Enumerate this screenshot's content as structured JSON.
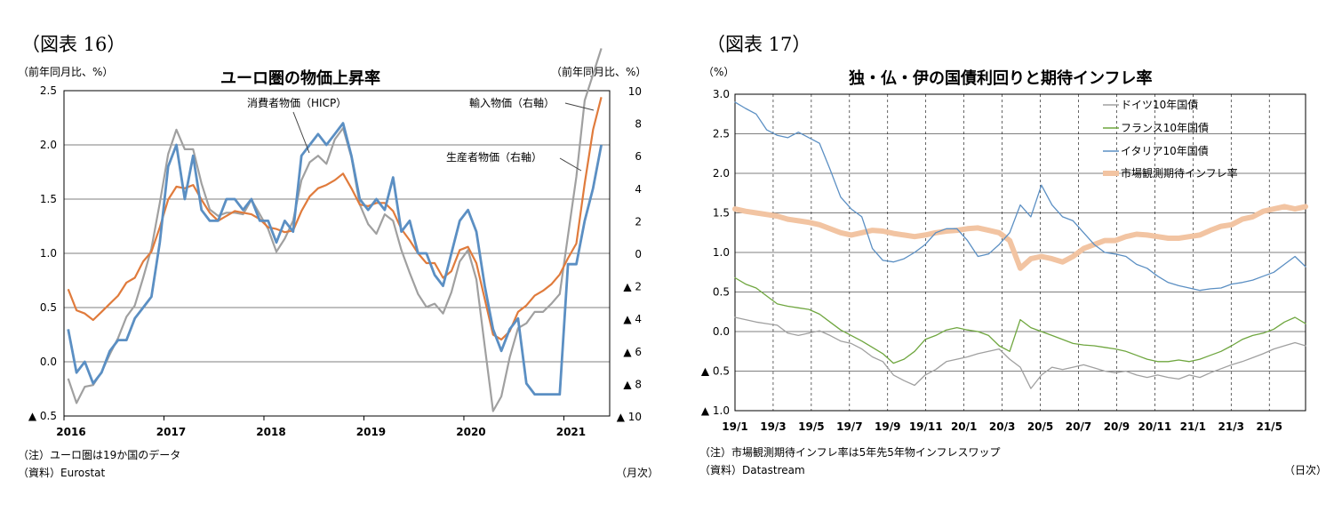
{
  "left": {
    "figure_label": "（図表 16）",
    "unit_left": "（前年同月比、%）",
    "unit_right": "（前年同月比、%）",
    "note": "（注）ユーロ圏は19か国のデータ",
    "source": "（資料）Eurostat",
    "period": "（月次）"
  },
  "right": {
    "figure_label": "（図表 17）",
    "unit_left": "（%）",
    "note": "（注）市場観測期待インフレ率は5年先5年物インフレスワップ",
    "source": "（資料）Datastream",
    "period": "（日次）"
  },
  "chart_data": [
    {
      "type": "line",
      "title": "ユーロ圏の物価上昇率",
      "x_tick_labels": [
        "2016",
        "2017",
        "2018",
        "2019",
        "2020",
        "2021"
      ],
      "y_left": {
        "min": -0.5,
        "max": 2.5,
        "ticks": [
          2.5,
          2.0,
          1.5,
          1.0,
          0.5,
          0.0,
          -0.5
        ],
        "tick_labels": [
          "2.5",
          "2.0",
          "1.5",
          "1.0",
          "0.5",
          "0.0",
          "▲ 0.5"
        ]
      },
      "y_right": {
        "min": -10,
        "max": 10,
        "ticks": [
          10,
          8,
          6,
          4,
          2,
          0,
          -2,
          -4,
          -6,
          -8,
          -10
        ],
        "tick_labels": [
          "10",
          "8",
          "6",
          "4",
          "2",
          "0",
          "▲ 2",
          "▲ 4",
          "▲ 6",
          "▲ 8",
          "▲ 10"
        ]
      },
      "grid": true,
      "x_start": "2016-01",
      "series": [
        {
          "name": "消費者物価（HICP）",
          "axis": "left",
          "color": "#5b8fc3",
          "values": [
            0.3,
            -0.1,
            0.0,
            -0.2,
            -0.1,
            0.1,
            0.2,
            0.2,
            0.4,
            0.5,
            0.6,
            1.1,
            1.8,
            2.0,
            1.5,
            1.9,
            1.4,
            1.3,
            1.3,
            1.5,
            1.5,
            1.4,
            1.5,
            1.3,
            1.3,
            1.1,
            1.3,
            1.2,
            1.9,
            2.0,
            2.1,
            2.0,
            2.1,
            2.2,
            1.9,
            1.5,
            1.4,
            1.5,
            1.4,
            1.7,
            1.2,
            1.3,
            1.0,
            1.0,
            0.8,
            0.7,
            1.0,
            1.3,
            1.4,
            1.2,
            0.7,
            0.3,
            0.1,
            0.3,
            0.4,
            -0.2,
            -0.3,
            -0.3,
            -0.3,
            -0.3,
            0.9,
            0.9,
            1.3,
            1.6,
            2.0
          ]
        },
        {
          "name": "生産者物価（右軸）",
          "axis": "right",
          "color": "#e07b3c",
          "values": [
            -2.2,
            -3.5,
            -3.7,
            -4.1,
            -3.6,
            -3.1,
            -2.6,
            -1.8,
            -1.5,
            -0.5,
            0.1,
            1.6,
            3.3,
            4.1,
            4.0,
            4.2,
            3.3,
            2.5,
            2.0,
            2.3,
            2.6,
            2.5,
            2.4,
            2.1,
            1.6,
            1.5,
            1.3,
            1.4,
            2.6,
            3.5,
            4.0,
            4.2,
            4.5,
            4.9,
            4.0,
            3.0,
            2.9,
            3.1,
            3.1,
            2.6,
            1.5,
            0.8,
            0.0,
            -0.6,
            -0.6,
            -1.5,
            -1.1,
            0.2,
            0.4,
            -0.6,
            -2.8,
            -5.0,
            -5.3,
            -4.8,
            -3.6,
            -3.2,
            -2.6,
            -2.3,
            -1.9,
            -1.3,
            -0.3,
            0.6,
            4.3,
            7.6,
            9.6
          ]
        },
        {
          "name": "輸入物価（右軸）",
          "axis": "right",
          "color": "#a0a0a0",
          "values": [
            -7.7,
            -9.2,
            -8.2,
            -8.1,
            -7.3,
            -6.2,
            -5.2,
            -3.9,
            -3.2,
            -1.5,
            0.3,
            3.1,
            6.1,
            7.6,
            6.4,
            6.4,
            4.3,
            2.7,
            2.3,
            2.5,
            2.5,
            2.4,
            3.3,
            2.4,
            1.5,
            0.1,
            0.9,
            2.0,
            4.5,
            5.6,
            6.0,
            5.5,
            7.0,
            7.7,
            5.9,
            3.0,
            1.8,
            1.2,
            2.4,
            2.0,
            0.2,
            -1.2,
            -2.5,
            -3.3,
            -3.1,
            -3.7,
            -2.4,
            -0.5,
            0.2,
            -1.6,
            -5.7,
            -9.7,
            -8.8,
            -6.4,
            -4.6,
            -4.3,
            -3.6,
            -3.6,
            -3.1,
            -2.5,
            1.1,
            4.7,
            9.4,
            11.0,
            12.6
          ]
        }
      ],
      "annotations": [
        {
          "text": "消費者物価（HICP）",
          "series": 0
        },
        {
          "text": "輸入物価（右軸）",
          "series": 2
        },
        {
          "text": "生産者物価（右軸）",
          "series": 1
        }
      ]
    },
    {
      "type": "line",
      "title": "独・仏・伊の国債利回りと期待インフレ率",
      "x_tick_labels": [
        "19/1",
        "19/3",
        "19/5",
        "19/7",
        "19/9",
        "19/11",
        "20/1",
        "20/3",
        "20/5",
        "20/7",
        "20/9",
        "20/11",
        "21/1",
        "21/3",
        "21/5"
      ],
      "y": {
        "min": -1.0,
        "max": 3.0,
        "ticks": [
          3.0,
          2.5,
          2.0,
          1.5,
          1.0,
          0.5,
          0.0,
          -0.5,
          -1.0
        ],
        "tick_labels": [
          "3.0",
          "2.5",
          "2.0",
          "1.5",
          "1.0",
          "0.5",
          "0.0",
          "▲ 0.5",
          "▲ 1.0"
        ]
      },
      "grid": true,
      "legend": "top-right",
      "x_unit": "semi-monthly",
      "series": [
        {
          "name": "ドイツ10年国債",
          "color": "#a0a0a0",
          "values": [
            0.18,
            0.15,
            0.12,
            0.1,
            0.08,
            -0.02,
            -0.05,
            -0.02,
            0.01,
            -0.05,
            -0.12,
            -0.15,
            -0.22,
            -0.32,
            -0.38,
            -0.55,
            -0.62,
            -0.68,
            -0.55,
            -0.48,
            -0.38,
            -0.35,
            -0.32,
            -0.28,
            -0.25,
            -0.22,
            -0.35,
            -0.45,
            -0.72,
            -0.55,
            -0.45,
            -0.48,
            -0.45,
            -0.42,
            -0.46,
            -0.5,
            -0.52,
            -0.5,
            -0.55,
            -0.58,
            -0.55,
            -0.58,
            -0.6,
            -0.55,
            -0.58,
            -0.52,
            -0.47,
            -0.42,
            -0.38,
            -0.33,
            -0.28,
            -0.22,
            -0.18,
            -0.14,
            -0.18
          ]
        },
        {
          "name": "フランス10年国債",
          "color": "#6fa63f",
          "values": [
            0.68,
            0.6,
            0.55,
            0.45,
            0.35,
            0.32,
            0.3,
            0.28,
            0.22,
            0.12,
            0.02,
            -0.05,
            -0.12,
            -0.2,
            -0.28,
            -0.4,
            -0.35,
            -0.25,
            -0.1,
            -0.05,
            0.02,
            0.05,
            0.02,
            0.0,
            -0.05,
            -0.18,
            -0.25,
            0.15,
            0.05,
            0.0,
            -0.05,
            -0.1,
            -0.15,
            -0.17,
            -0.18,
            -0.2,
            -0.22,
            -0.25,
            -0.3,
            -0.35,
            -0.38,
            -0.38,
            -0.36,
            -0.38,
            -0.35,
            -0.3,
            -0.25,
            -0.18,
            -0.1,
            -0.05,
            -0.02,
            0.03,
            0.12,
            0.18,
            0.1
          ]
        },
        {
          "name": "イタリア10年国債",
          "color": "#5b8fc3",
          "values": [
            2.9,
            2.82,
            2.75,
            2.55,
            2.48,
            2.45,
            2.52,
            2.45,
            2.38,
            2.05,
            1.7,
            1.55,
            1.45,
            1.05,
            0.9,
            0.88,
            0.92,
            1.0,
            1.1,
            1.25,
            1.3,
            1.3,
            1.15,
            0.95,
            0.98,
            1.1,
            1.25,
            1.6,
            1.45,
            1.85,
            1.6,
            1.45,
            1.4,
            1.25,
            1.1,
            1.0,
            0.98,
            0.95,
            0.85,
            0.8,
            0.7,
            0.62,
            0.58,
            0.55,
            0.52,
            0.54,
            0.55,
            0.6,
            0.62,
            0.65,
            0.7,
            0.75,
            0.85,
            0.95,
            0.82
          ]
        },
        {
          "name": "市場観測期待インフレ率",
          "color": "#f2c4a2",
          "values": [
            1.55,
            1.52,
            1.5,
            1.48,
            1.46,
            1.42,
            1.4,
            1.38,
            1.35,
            1.3,
            1.25,
            1.22,
            1.25,
            1.28,
            1.27,
            1.24,
            1.22,
            1.2,
            1.22,
            1.25,
            1.27,
            1.28,
            1.3,
            1.31,
            1.28,
            1.25,
            1.15,
            0.8,
            0.92,
            0.95,
            0.92,
            0.88,
            0.95,
            1.05,
            1.1,
            1.15,
            1.15,
            1.2,
            1.23,
            1.22,
            1.2,
            1.18,
            1.18,
            1.2,
            1.22,
            1.28,
            1.33,
            1.35,
            1.42,
            1.45,
            1.52,
            1.55,
            1.58,
            1.55,
            1.58
          ]
        }
      ]
    }
  ]
}
